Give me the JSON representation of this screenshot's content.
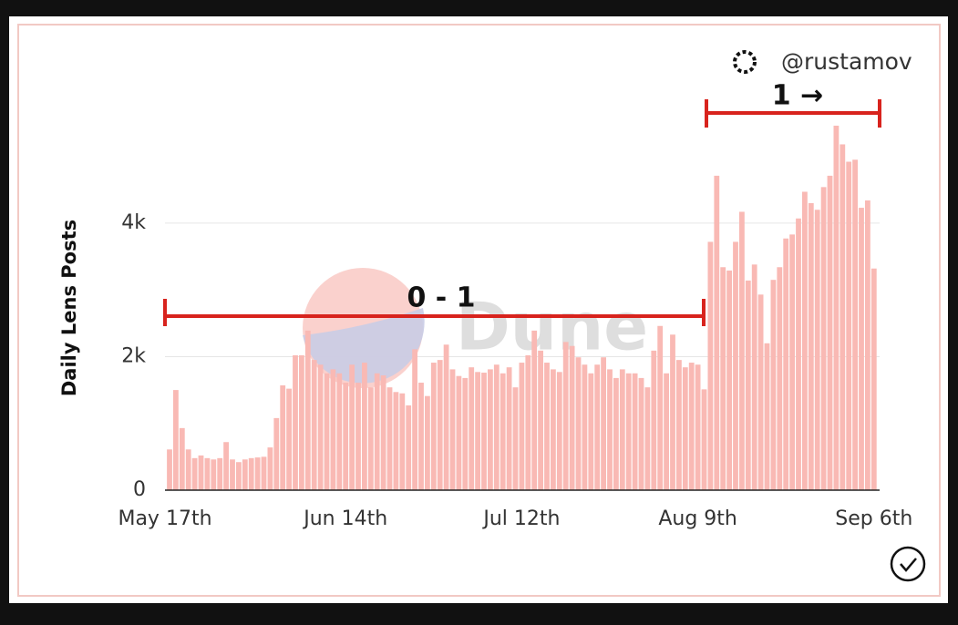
{
  "chart_data": {
    "type": "bar",
    "y_label": "Daily Lens Posts",
    "watermark": "Dune",
    "author": "@rustamov",
    "annotations": [
      "0 - 1",
      "1 →"
    ],
    "color": "#f9b9b4",
    "grid": true,
    "ylim": [
      0,
      5500
    ],
    "yticks": [
      0,
      {
        "value": 2000,
        "label": "2k"
      },
      {
        "value": 4000,
        "label": "4k"
      }
    ],
    "categories": [
      "May 17th",
      null,
      null,
      null,
      null,
      null,
      null,
      null,
      null,
      null,
      null,
      null,
      null,
      null,
      null,
      null,
      null,
      null,
      null,
      null,
      null,
      null,
      null,
      null,
      null,
      null,
      null,
      null,
      "Jun 14th",
      null,
      null,
      null,
      null,
      null,
      null,
      null,
      null,
      null,
      null,
      null,
      null,
      null,
      null,
      null,
      null,
      null,
      null,
      null,
      null,
      null,
      null,
      null,
      null,
      null,
      null,
      null,
      "Jul 12th",
      null,
      null,
      null,
      null,
      null,
      null,
      null,
      null,
      null,
      null,
      null,
      null,
      null,
      null,
      null,
      null,
      null,
      null,
      null,
      null,
      null,
      null,
      null,
      null,
      null,
      null,
      null,
      "Aug 9th",
      null,
      null,
      null,
      null,
      null,
      null,
      null,
      null,
      null,
      null,
      null,
      null,
      null,
      null,
      null,
      null,
      null,
      null,
      null,
      null,
      null,
      null,
      null,
      null,
      null,
      null,
      null,
      "Sep 6th"
    ],
    "values": [
      610,
      1500,
      930,
      610,
      480,
      520,
      480,
      460,
      480,
      720,
      460,
      420,
      460,
      480,
      490,
      500,
      640,
      1080,
      1570,
      1520,
      2020,
      2020,
      2390,
      1950,
      1880,
      1750,
      1810,
      1750,
      1610,
      1880,
      1610,
      1910,
      1540,
      1750,
      1720,
      1540,
      1470,
      1450,
      1270,
      2110,
      1610,
      1410,
      1910,
      1950,
      2180,
      1810,
      1710,
      1680,
      1840,
      1770,
      1760,
      1810,
      1880,
      1750,
      1840,
      1540,
      1910,
      2020,
      2390,
      2090,
      1910,
      1810,
      1770,
      2220,
      2160,
      1990,
      1880,
      1750,
      1880,
      1990,
      1810,
      1680,
      1810,
      1750,
      1750,
      1680,
      1540,
      2090,
      2460,
      1750,
      2330,
      1950,
      1840,
      1910,
      1880,
      1510,
      3720,
      4710,
      3340,
      3290,
      3720,
      4170,
      3140,
      3380,
      2930,
      2200,
      3150,
      3340,
      3770,
      3830,
      4070,
      4470,
      4300,
      4200,
      4540,
      4710,
      5460,
      5180,
      4920,
      4950,
      4230,
      4340,
      3320
    ]
  }
}
